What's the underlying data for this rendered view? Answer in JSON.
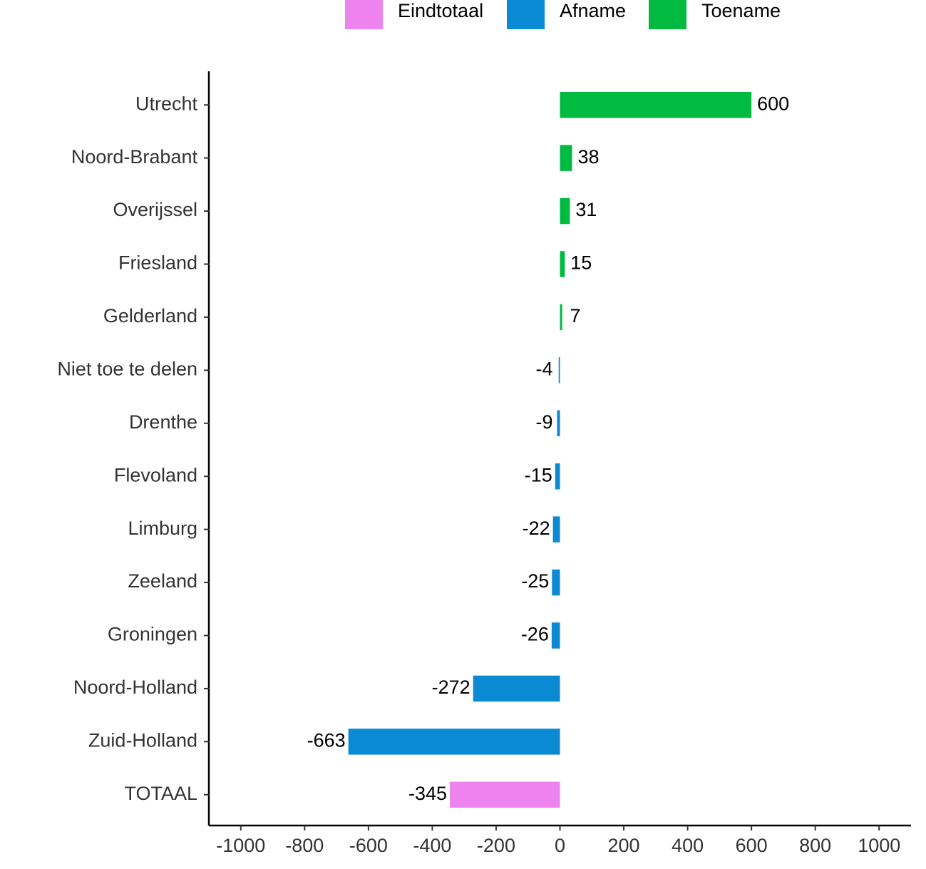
{
  "chart_data": {
    "type": "bar",
    "orientation": "horizontal",
    "categories": [
      "Utrecht",
      "Noord-Brabant",
      "Overijssel",
      "Friesland",
      "Gelderland",
      "Niet toe te delen",
      "Drenthe",
      "Flevoland",
      "Limburg",
      "Zeeland",
      "Groningen",
      "Noord-Holland",
      "Zuid-Holland",
      "TOTAAL"
    ],
    "series": [
      {
        "name": "Eindtotaal",
        "color": "#ee82ee",
        "values": [
          null,
          null,
          null,
          null,
          null,
          null,
          null,
          null,
          null,
          null,
          null,
          null,
          null,
          -345
        ]
      },
      {
        "name": "Afname",
        "color": "#0a8ad2",
        "values": [
          null,
          null,
          null,
          null,
          null,
          -4,
          -9,
          -15,
          -22,
          -25,
          -26,
          -272,
          -663,
          null
        ]
      },
      {
        "name": "Toename",
        "color": "#00bb3f",
        "values": [
          600,
          38,
          31,
          15,
          7,
          null,
          null,
          null,
          null,
          null,
          null,
          null,
          null,
          null
        ]
      }
    ],
    "xlim": [
      -1100,
      1100
    ],
    "xticks": [
      -1000,
      -800,
      -600,
      -400,
      -200,
      0,
      200,
      400,
      600,
      800,
      1000
    ],
    "legend": "top",
    "grid": false
  }
}
